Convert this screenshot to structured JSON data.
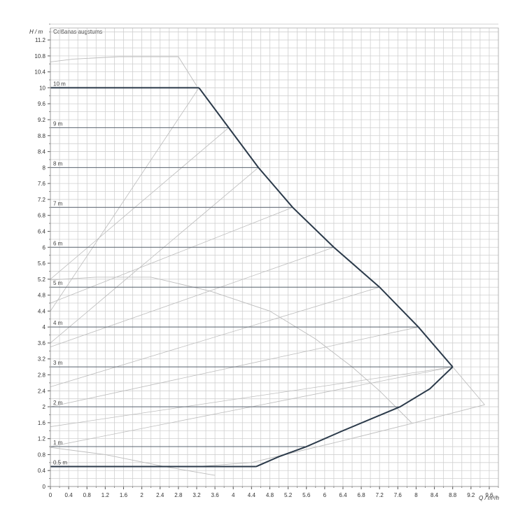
{
  "chart_data": {
    "type": "line",
    "title": "Celšanas augstums",
    "ylabel": "H / m",
    "xlabel": "Q / m³/h",
    "xlim": [
      0,
      9.8
    ],
    "ylim": [
      0,
      11.5
    ],
    "grid": true,
    "x_ticks": [
      "0",
      "0.4",
      "0.8",
      "1.2",
      "1.6",
      "2",
      "2.4",
      "2.8",
      "3.2",
      "3.6",
      "4",
      "4.4",
      "4.8",
      "5.2",
      "5.6",
      "6",
      "6.4",
      "6.8",
      "7.2",
      "7.6",
      "8",
      "8.4",
      "8.8",
      "9.2",
      "9.6"
    ],
    "y_ticks": [
      "0",
      "0.4",
      "0.8",
      "1.2",
      "1.6",
      "2",
      "2.4",
      "2.8",
      "3.2",
      "3.6",
      "4",
      "4.4",
      "4.8",
      "5.2",
      "5.6",
      "6",
      "6.4",
      "6.8",
      "7.2",
      "7.6",
      "8",
      "8.4",
      "8.8",
      "9.2",
      "9.6",
      "10",
      "10.4",
      "10.8",
      "11.2"
    ],
    "setpoints": [
      {
        "label": "10 m",
        "value": 10,
        "q_end": 3.25
      },
      {
        "label": "9 m",
        "value": 9,
        "q_end": 3.9
      },
      {
        "label": "8 m",
        "value": 8,
        "q_end": 4.55
      },
      {
        "label": "7 m",
        "value": 7,
        "q_end": 5.3
      },
      {
        "label": "6 m",
        "value": 6,
        "q_end": 6.2
      },
      {
        "label": "5 m",
        "value": 5,
        "q_end": 7.2
      },
      {
        "label": "4 m",
        "value": 4,
        "q_end": 8.05
      },
      {
        "label": "3 m",
        "value": 3,
        "q_end": 8.8
      },
      {
        "label": "2 m",
        "value": 2,
        "q_end": 7.65
      },
      {
        "label": "1 m",
        "value": 1,
        "q_end": 5.6
      },
      {
        "label": "0.5 m",
        "value": 0.5,
        "q_end": 4.5
      }
    ],
    "series": [
      {
        "role": "max-envelope-upper",
        "x": [
          3.25,
          3.9,
          4.55,
          5.3,
          6.2,
          7.2,
          8.05,
          8.8
        ],
        "y": [
          10,
          9,
          8,
          7,
          6,
          5,
          4,
          3
        ]
      },
      {
        "role": "max-envelope-lower",
        "x": [
          4.5,
          5.0,
          5.6,
          6.4,
          7.65,
          8.3,
          8.8
        ],
        "y": [
          0.5,
          0.75,
          1,
          1.4,
          2,
          2.45,
          3
        ]
      },
      {
        "role": "faint-curve-top",
        "x": [
          0,
          0.5,
          1.5,
          2.8,
          3.2
        ],
        "y": [
          10.65,
          10.72,
          10.78,
          10.78,
          10.05
        ]
      },
      {
        "role": "faint-curve-mid",
        "x": [
          0,
          1.0,
          2.2,
          3.5,
          4.8,
          5.8,
          6.6,
          7.2,
          7.9
        ],
        "y": [
          5.18,
          5.25,
          5.25,
          4.9,
          4.4,
          3.7,
          3.0,
          2.4,
          1.6
        ]
      },
      {
        "role": "faint-curve-bottom",
        "x": [
          0,
          1.2,
          2.5,
          3.6
        ],
        "y": [
          0.98,
          0.8,
          0.5,
          0.28
        ]
      },
      {
        "role": "faint-vertex-right",
        "x": [
          8.8,
          9.5
        ],
        "y": [
          3,
          2.05
        ]
      },
      {
        "role": "faint-curve-right-lower",
        "x": [
          9.5,
          7.8,
          6.4,
          4.4,
          3.2
        ],
        "y": [
          2.05,
          1.55,
          1.15,
          0.6,
          0.5
        ]
      },
      {
        "role": "faint-diagonals",
        "lines": [
          {
            "x": [
              0,
              3.25
            ],
            "y": [
              4.4,
              10
            ]
          },
          {
            "x": [
              0,
              3.9
            ],
            "y": [
              5.2,
              9
            ]
          },
          {
            "x": [
              0,
              4.55
            ],
            "y": [
              3.6,
              8
            ]
          },
          {
            "x": [
              0,
              5.3
            ],
            "y": [
              4.6,
              7
            ]
          },
          {
            "x": [
              0,
              6.2
            ],
            "y": [
              3.5,
              6
            ]
          },
          {
            "x": [
              0,
              7.2
            ],
            "y": [
              2.5,
              5
            ]
          },
          {
            "x": [
              0,
              8.05
            ],
            "y": [
              2.0,
              4
            ]
          },
          {
            "x": [
              0,
              8.8
            ],
            "y": [
              1.5,
              3
            ]
          },
          {
            "x": [
              0,
              8.8
            ],
            "y": [
              1.0,
              3
            ]
          }
        ]
      }
    ]
  }
}
